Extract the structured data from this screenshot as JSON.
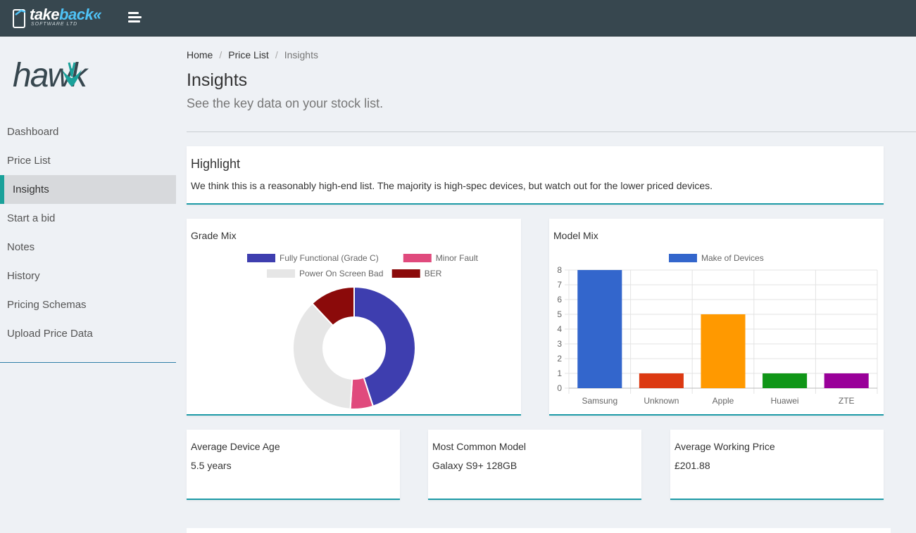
{
  "topbar": {
    "brand_take": "take",
    "brand_back": "back",
    "brand_chevrons": "«",
    "brand_sub": "SOFTWARE LTD",
    "menu_icon": "hamburger-menu-icon"
  },
  "sidebar": {
    "logo_text": "hawk",
    "items": [
      {
        "label": "Dashboard",
        "active": false
      },
      {
        "label": "Price List",
        "active": false
      },
      {
        "label": "Insights",
        "active": true
      },
      {
        "label": "Start a bid",
        "active": false
      },
      {
        "label": "Notes",
        "active": false
      },
      {
        "label": "History",
        "active": false
      },
      {
        "label": "Pricing Schemas",
        "active": false
      },
      {
        "label": "Upload Price Data",
        "active": false
      }
    ]
  },
  "breadcrumb": {
    "home": "Home",
    "price_list": "Price List",
    "current": "Insights",
    "separator": "/"
  },
  "page": {
    "title": "Insights",
    "subtitle": "See the key data on your stock list."
  },
  "highlight": {
    "title": "Highlight",
    "text": "We think this is a reasonably high-end list. The majority is high-spec devices, but watch out for the lower priced devices."
  },
  "stats": {
    "age_label": "Average Device Age",
    "age_value": "5.5 years",
    "model_label": "Most Common Model",
    "model_value": "Galaxy S9+ 128GB",
    "price_label": "Average Working Price",
    "price_value": "£201.88"
  },
  "colors": {
    "topbar": "#37474f",
    "accent": "#1aa19a",
    "card_border": "#1c9aa6"
  },
  "chart_data": [
    {
      "type": "pie",
      "title": "Grade Mix",
      "categories": [
        "Fully Functional (Grade C)",
        "Minor Fault",
        "Power On Screen Bad",
        "BER"
      ],
      "values": [
        45,
        6,
        37,
        12
      ],
      "colors": [
        "#3e3eaf",
        "#e04a7d",
        "#e6e6e6",
        "#8b0a0a"
      ],
      "legend": "top"
    },
    {
      "type": "bar",
      "title": "Model Mix",
      "categories": [
        "Samsung",
        "Unknown",
        "Apple",
        "Huawei",
        "ZTE"
      ],
      "series": [
        {
          "name": "Make of Devices",
          "values": [
            8,
            1,
            5,
            1,
            1
          ]
        }
      ],
      "colors": [
        "#3366cc",
        "#dc3912",
        "#ff9900",
        "#109618",
        "#990099"
      ],
      "ylim": [
        0,
        8
      ],
      "yticks": [
        0,
        1,
        2,
        3,
        4,
        5,
        6,
        7,
        8
      ],
      "legend": "top",
      "grid": true
    }
  ]
}
